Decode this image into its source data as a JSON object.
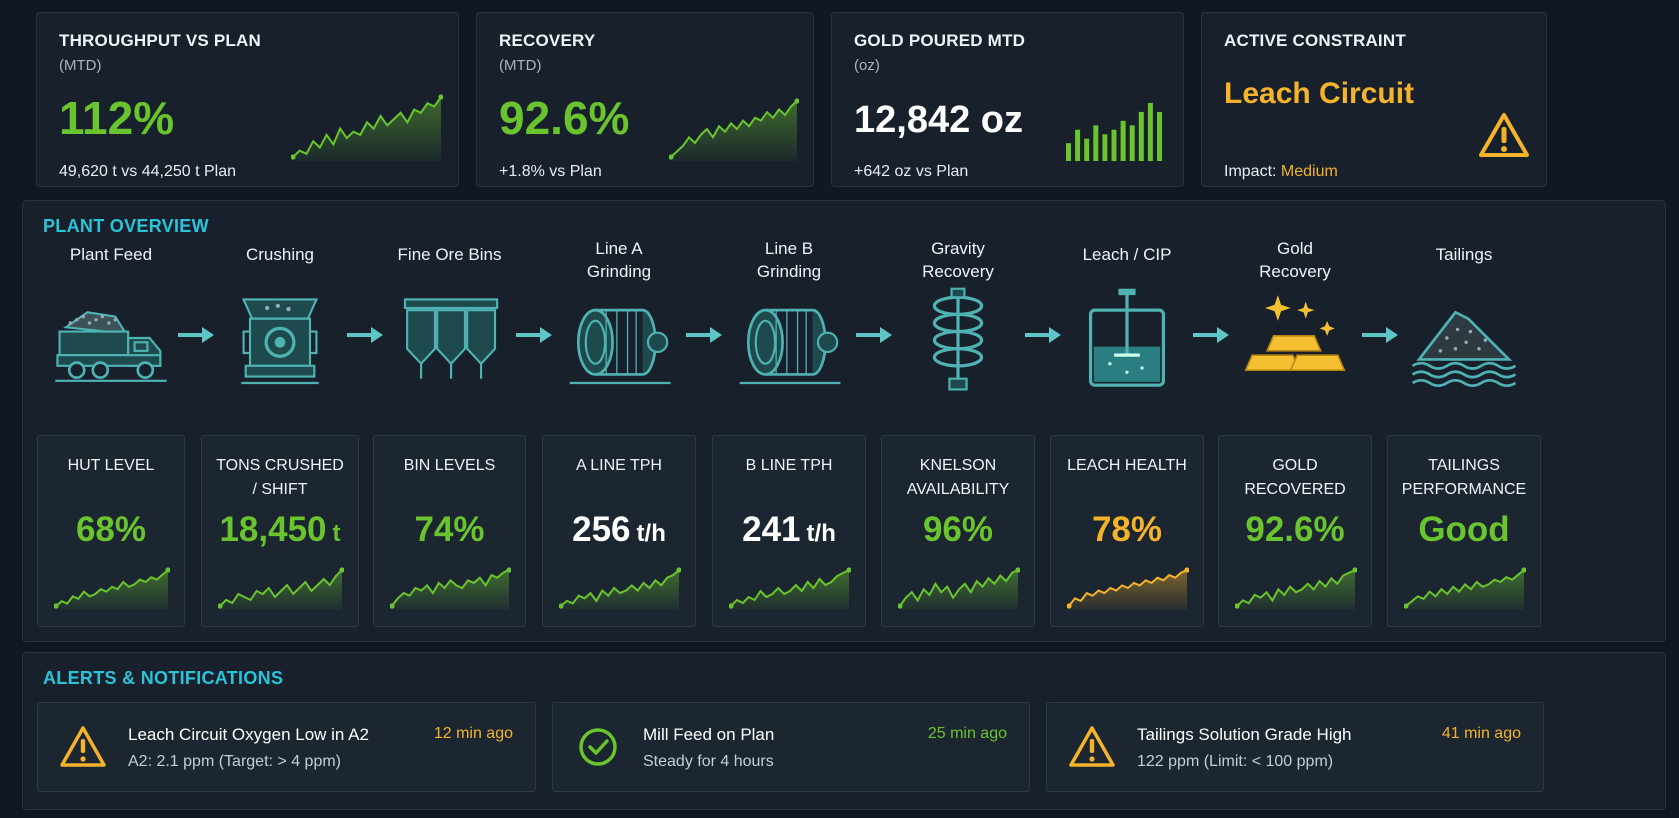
{
  "kpis": [
    {
      "title": "THROUGHPUT VS PLAN",
      "sub": "(MTD)",
      "value": "112%",
      "note": "49,620 t vs 44,250 t Plan",
      "color": "#6ac42e",
      "chart": "line",
      "spark": [
        3,
        5,
        4,
        8,
        6,
        10,
        7,
        12,
        9,
        11,
        10,
        14,
        12,
        16,
        13,
        15,
        17,
        14,
        18,
        17,
        20,
        19,
        22
      ]
    },
    {
      "title": "RECOVERY",
      "sub": "(MTD)",
      "value": "92.6%",
      "note": "+1.8% vs Plan",
      "color": "#6ac42e",
      "chart": "line",
      "spark": [
        2,
        4,
        6,
        9,
        7,
        10,
        12,
        9,
        13,
        11,
        14,
        12,
        15,
        13,
        16,
        15,
        18,
        16,
        19,
        17,
        20,
        22
      ]
    },
    {
      "title": "GOLD POURED MTD",
      "sub": "(oz)",
      "value": "12,842 oz",
      "note": "+642 oz vs Plan",
      "color": "#ffffff",
      "chart": "bar",
      "spark": [
        4,
        7,
        5,
        8,
        6,
        7,
        9,
        8,
        11,
        13,
        11
      ]
    },
    {
      "title": "ACTIVE CONSTRAINT",
      "sub": "",
      "value": "Leach Circuit",
      "note_prefix": "Impact:",
      "note_value": "Medium",
      "color": "#f4b32a",
      "icon": "warning-icon"
    }
  ],
  "overview": {
    "title": "PLANT OVERVIEW",
    "stages": [
      {
        "label": "Plant Feed",
        "icon": "dump-truck-icon"
      },
      {
        "label": "Crushing",
        "icon": "crusher-icon"
      },
      {
        "label": "Fine Ore Bins",
        "icon": "ore-bins-icon"
      },
      {
        "label": "Line A\nGrinding",
        "icon": "grinding-mill-icon"
      },
      {
        "label": "Line B\nGrinding",
        "icon": "grinding-mill-icon"
      },
      {
        "label": "Gravity\nRecovery",
        "icon": "spiral-concentrator-icon"
      },
      {
        "label": "Leach / CIP",
        "icon": "leach-tank-icon"
      },
      {
        "label": "Gold\nRecovery",
        "icon": "gold-bars-icon"
      },
      {
        "label": "Tailings",
        "icon": "tailings-pile-icon"
      }
    ],
    "metrics": [
      {
        "label": "HUT LEVEL",
        "value": "68%",
        "unit": "",
        "color": "#6ac42e",
        "spark": [
          2,
          4,
          3,
          6,
          5,
          8,
          6,
          7,
          9,
          8,
          10,
          9,
          12,
          10,
          11,
          13,
          12,
          14,
          13,
          15,
          17
        ]
      },
      {
        "label": "TONS CRUSHED\n/ SHIFT",
        "value": "18,450",
        "unit": "t",
        "color": "#6ac42e",
        "spark": [
          3,
          5,
          4,
          7,
          6,
          5,
          8,
          7,
          9,
          6,
          8,
          10,
          7,
          9,
          11,
          8,
          10,
          12,
          10,
          13,
          15
        ]
      },
      {
        "label": "BIN LEVELS",
        "value": "74%",
        "unit": "",
        "color": "#6ac42e",
        "spark": [
          2,
          5,
          7,
          6,
          9,
          8,
          10,
          7,
          11,
          9,
          12,
          10,
          9,
          12,
          11,
          13,
          10,
          14,
          13,
          15,
          16
        ]
      },
      {
        "label": "A LINE TPH",
        "value": "256",
        "unit": "t/h",
        "color": "#ffffff",
        "spark": [
          2,
          4,
          3,
          6,
          5,
          7,
          4,
          8,
          6,
          9,
          7,
          8,
          10,
          8,
          11,
          9,
          12,
          10,
          13,
          14,
          16
        ]
      },
      {
        "label": "B LINE TPH",
        "value": "241",
        "unit": "t/h",
        "color": "#ffffff",
        "spark": [
          3,
          5,
          4,
          6,
          5,
          8,
          6,
          7,
          9,
          7,
          8,
          10,
          8,
          11,
          9,
          12,
          10,
          11,
          13,
          14,
          15
        ]
      },
      {
        "label": "KNELSON\nAVAILABILITY",
        "value": "96%",
        "unit": "",
        "color": "#6ac42e",
        "spark": [
          3,
          6,
          8,
          5,
          9,
          7,
          11,
          8,
          10,
          6,
          9,
          11,
          8,
          12,
          10,
          13,
          11,
          14,
          12,
          15,
          16
        ]
      },
      {
        "label": "LEACH HEALTH",
        "value": "78%",
        "unit": "",
        "color": "#f4b32a",
        "spark": [
          2,
          5,
          4,
          7,
          6,
          8,
          7,
          9,
          8,
          10,
          9,
          11,
          10,
          12,
          11,
          13,
          12,
          14,
          13,
          15,
          16
        ]
      },
      {
        "label": "GOLD\nRECOVERED",
        "value": "92.6%",
        "unit": "",
        "color": "#6ac42e",
        "spark": [
          3,
          5,
          4,
          7,
          6,
          8,
          5,
          9,
          7,
          10,
          8,
          9,
          11,
          9,
          12,
          10,
          13,
          11,
          14,
          15,
          16
        ]
      },
      {
        "label": "TAILINGS\nPERFORMANCE",
        "value": "Good",
        "unit": "",
        "color": "#6ac42e",
        "spark": [
          2,
          4,
          6,
          5,
          8,
          6,
          9,
          7,
          10,
          8,
          11,
          9,
          12,
          10,
          11,
          13,
          12,
          14,
          13,
          15,
          17
        ]
      }
    ]
  },
  "alerts": {
    "title": "ALERTS & NOTIFICATIONS",
    "items": [
      {
        "title": "Leach Circuit Oxygen Low in A2",
        "desc": "A2: 2.1 ppm (Target: > 4 ppm)",
        "time": "12 min ago",
        "icon": "warning-icon",
        "color": "#f4b32a"
      },
      {
        "title": "Mill Feed on Plan",
        "desc": "Steady for 4 hours",
        "time": "25 min ago",
        "icon": "check-circle-icon",
        "color": "#6ac42e"
      },
      {
        "title": "Tailings Solution Grade High",
        "desc": "122 ppm (Limit: < 100 ppm)",
        "time": "41 min ago",
        "icon": "warning-icon",
        "color": "#f4b32a"
      }
    ]
  }
}
